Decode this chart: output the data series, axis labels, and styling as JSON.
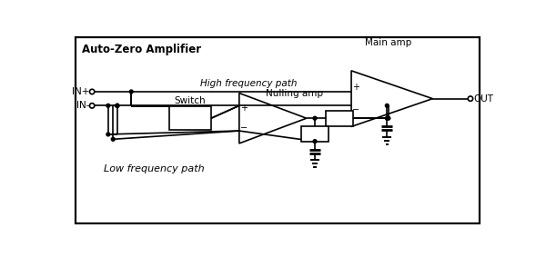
{
  "title": "Auto-Zero Amplifier",
  "label_in_plus": "IN+",
  "label_in_minus": "IN-",
  "label_out": "OUT",
  "label_high_freq": "High frequency path",
  "label_low_freq": "Low frequency path",
  "label_main_amp": "Main amp",
  "label_nulling_amp": "Nulling amp",
  "label_switch": "Switch",
  "bg_color": "#ffffff",
  "line_color": "#000000",
  "fig_width": 6.0,
  "fig_height": 2.83
}
